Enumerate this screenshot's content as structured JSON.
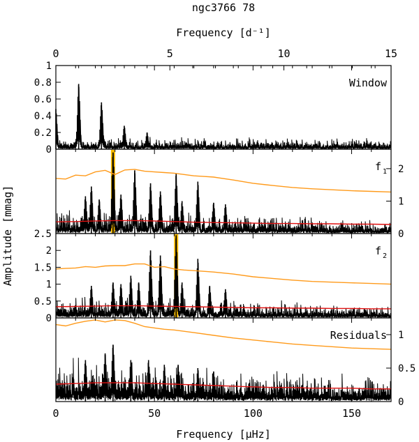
{
  "title": "ngc3766 78",
  "top_axis": {
    "label": "Frequency [d⁻¹]",
    "ticks": [
      "0",
      "5",
      "10",
      "15"
    ],
    "values": [
      0,
      5,
      10,
      15
    ],
    "range": [
      0,
      14.7
    ]
  },
  "bottom_axis": {
    "label": "Frequency [μHz]",
    "ticks": [
      "0",
      "50",
      "100",
      "150"
    ],
    "values": [
      0,
      50,
      100,
      150
    ],
    "range": [
      0,
      170
    ]
  },
  "ylabel": "Amplitude [mmag]",
  "colors": {
    "spectrum": "#000000",
    "noise_orange": "#ff9a1a",
    "noise_red": "#e01010",
    "highlight": "#f5b800"
  },
  "panels": [
    {
      "id": "window",
      "label": "Window",
      "label_sub": "",
      "y_axis_side": "left",
      "yrange": [
        0,
        1
      ],
      "ytick_values": [
        0,
        0.2,
        0.4,
        0.6,
        0.8,
        1
      ],
      "ytick_labels": [
        "0",
        "0.2",
        "0.4",
        "0.6",
        "0.8",
        "1"
      ]
    },
    {
      "id": "f1",
      "label": "f",
      "label_sub": "1",
      "y_axis_side": "right",
      "yrange": [
        0,
        2.6
      ],
      "ytick_values": [
        0,
        1,
        2
      ],
      "ytick_labels": [
        "0",
        "1",
        "2"
      ],
      "highlight_freq": 29.0
    },
    {
      "id": "f2",
      "label": "f",
      "label_sub": "2",
      "y_axis_side": "left",
      "yrange": [
        0,
        2.5
      ],
      "ytick_values": [
        0,
        0.5,
        1,
        1.5,
        2,
        2.5
      ],
      "ytick_labels": [
        "0",
        "0.5",
        "1",
        "1.5",
        "2",
        "2.5"
      ],
      "highlight_freq": 61.0
    },
    {
      "id": "residuals",
      "label": "Residuals",
      "label_sub": "",
      "y_axis_side": "right",
      "yrange": [
        0,
        1.25
      ],
      "ytick_values": [
        0,
        0.5,
        1
      ],
      "ytick_labels": [
        "0",
        "0.5",
        "1"
      ]
    }
  ],
  "chart_data": [
    {
      "type": "line",
      "panel": "window",
      "title": "Window",
      "xlabel": "Frequency [d⁻¹]",
      "xlim": [
        0,
        14.7
      ],
      "ylim": [
        0,
        1
      ],
      "peaks": [
        {
          "x": 0.0,
          "y": 0.48
        },
        {
          "x": 1.0,
          "y": 0.78
        },
        {
          "x": 2.0,
          "y": 0.56
        },
        {
          "x": 3.0,
          "y": 0.28
        },
        {
          "x": 4.0,
          "y": 0.2
        }
      ],
      "baseline_level": 0.08
    },
    {
      "type": "line",
      "panel": "f1",
      "title": "f1",
      "xlabel": "Frequency [μHz]",
      "xlim": [
        0,
        170
      ],
      "ylim": [
        0,
        2.6
      ],
      "peaks": [
        {
          "x": 15,
          "y": 1.15
        },
        {
          "x": 18,
          "y": 1.45
        },
        {
          "x": 22,
          "y": 1.05
        },
        {
          "x": 29,
          "y": 2.5
        },
        {
          "x": 33,
          "y": 1.2
        },
        {
          "x": 40,
          "y": 1.95
        },
        {
          "x": 48,
          "y": 1.55
        },
        {
          "x": 53,
          "y": 1.3
        },
        {
          "x": 61,
          "y": 1.85
        },
        {
          "x": 64,
          "y": 1.0
        },
        {
          "x": 72,
          "y": 1.6
        },
        {
          "x": 80,
          "y": 0.95
        },
        {
          "x": 86,
          "y": 0.9
        }
      ],
      "noise_orange": {
        "x": [
          0,
          5,
          10,
          15,
          20,
          25,
          30,
          35,
          40,
          45,
          50,
          55,
          60,
          65,
          70,
          75,
          80,
          90,
          100,
          110,
          120,
          130,
          140,
          150,
          160,
          170
        ],
        "y": [
          1.7,
          1.68,
          1.8,
          1.78,
          1.9,
          1.95,
          1.82,
          1.96,
          1.98,
          1.92,
          1.9,
          1.88,
          1.86,
          1.82,
          1.78,
          1.76,
          1.74,
          1.65,
          1.55,
          1.48,
          1.42,
          1.38,
          1.35,
          1.32,
          1.3,
          1.28
        ]
      },
      "noise_red": {
        "x": [
          0,
          10,
          20,
          30,
          40,
          50,
          60,
          70,
          80,
          90,
          100,
          110,
          120,
          130,
          140,
          150,
          160,
          170
        ],
        "y": [
          0.36,
          0.37,
          0.39,
          0.4,
          0.4,
          0.39,
          0.37,
          0.35,
          0.34,
          0.33,
          0.32,
          0.31,
          0.31,
          0.3,
          0.3,
          0.29,
          0.29,
          0.28
        ]
      },
      "baseline_level": 0.35
    },
    {
      "type": "line",
      "panel": "f2",
      "title": "f2",
      "xlabel": "Frequency [μHz]",
      "xlim": [
        0,
        170
      ],
      "ylim": [
        0,
        2.5
      ],
      "peaks": [
        {
          "x": 18,
          "y": 0.95
        },
        {
          "x": 29,
          "y": 1.05
        },
        {
          "x": 33,
          "y": 1.0
        },
        {
          "x": 38,
          "y": 1.25
        },
        {
          "x": 42,
          "y": 1.05
        },
        {
          "x": 48,
          "y": 2.0
        },
        {
          "x": 53,
          "y": 1.85
        },
        {
          "x": 61,
          "y": 2.45
        },
        {
          "x": 64,
          "y": 1.05
        },
        {
          "x": 72,
          "y": 1.75
        },
        {
          "x": 78,
          "y": 0.95
        },
        {
          "x": 86,
          "y": 0.85
        }
      ],
      "noise_orange": {
        "x": [
          0,
          5,
          10,
          15,
          20,
          25,
          30,
          35,
          40,
          45,
          50,
          55,
          60,
          65,
          70,
          75,
          80,
          90,
          100,
          110,
          120,
          130,
          140,
          150,
          160,
          170
        ],
        "y": [
          1.45,
          1.47,
          1.48,
          1.52,
          1.5,
          1.54,
          1.55,
          1.55,
          1.6,
          1.6,
          1.5,
          1.52,
          1.45,
          1.42,
          1.4,
          1.38,
          1.36,
          1.3,
          1.22,
          1.17,
          1.12,
          1.08,
          1.06,
          1.04,
          1.02,
          1.0
        ]
      },
      "noise_red": {
        "x": [
          0,
          10,
          20,
          30,
          40,
          50,
          60,
          70,
          80,
          90,
          100,
          110,
          120,
          130,
          140,
          150,
          160,
          170
        ],
        "y": [
          0.33,
          0.34,
          0.35,
          0.36,
          0.36,
          0.35,
          0.34,
          0.33,
          0.32,
          0.31,
          0.3,
          0.3,
          0.29,
          0.29,
          0.28,
          0.28,
          0.27,
          0.27
        ]
      },
      "baseline_level": 0.32
    },
    {
      "type": "line",
      "panel": "residuals",
      "title": "Residuals",
      "xlabel": "Frequency [μHz]",
      "xlim": [
        0,
        170
      ],
      "ylim": [
        0,
        1.25
      ],
      "peaks": [
        {
          "x": 15,
          "y": 0.62
        },
        {
          "x": 25,
          "y": 0.72
        },
        {
          "x": 29,
          "y": 0.85
        },
        {
          "x": 38,
          "y": 0.62
        },
        {
          "x": 47,
          "y": 0.62
        },
        {
          "x": 55,
          "y": 0.55
        },
        {
          "x": 62,
          "y": 0.55
        },
        {
          "x": 72,
          "y": 0.5
        },
        {
          "x": 80,
          "y": 0.45
        }
      ],
      "noise_orange": {
        "x": [
          0,
          5,
          10,
          15,
          20,
          25,
          30,
          35,
          40,
          45,
          50,
          55,
          60,
          70,
          80,
          90,
          100,
          110,
          120,
          130,
          140,
          150,
          160,
          170
        ],
        "y": [
          1.15,
          1.13,
          1.17,
          1.2,
          1.22,
          1.19,
          1.22,
          1.21,
          1.17,
          1.12,
          1.1,
          1.08,
          1.07,
          1.03,
          0.99,
          0.95,
          0.92,
          0.89,
          0.86,
          0.84,
          0.82,
          0.8,
          0.79,
          0.78
        ]
      },
      "noise_red": {
        "x": [
          0,
          10,
          20,
          30,
          40,
          50,
          60,
          70,
          80,
          90,
          100,
          110,
          120,
          130,
          140,
          150,
          160,
          170
        ],
        "y": [
          0.26,
          0.27,
          0.28,
          0.28,
          0.28,
          0.27,
          0.26,
          0.25,
          0.24,
          0.23,
          0.22,
          0.21,
          0.21,
          0.2,
          0.2,
          0.2,
          0.19,
          0.19
        ]
      },
      "baseline_level": 0.3
    }
  ]
}
